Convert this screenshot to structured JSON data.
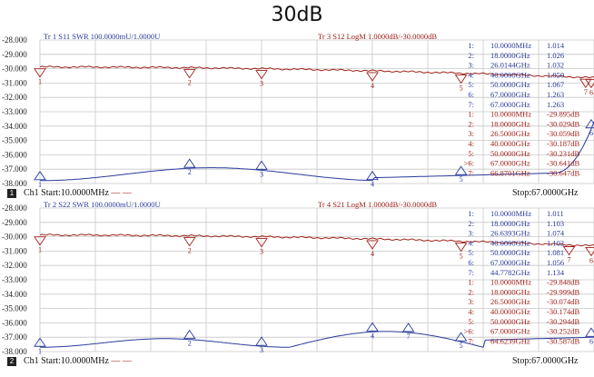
{
  "title": "30dB",
  "channels": [
    {
      "box": "1",
      "channel_label": "Ch1",
      "start": "Start:10.0000MHz",
      "stop": "Stop:67.0000GHz",
      "dash": "— —",
      "header_left": "Tr 1  S11 SWR 100.0000mU/1.0000U",
      "header_right": "Tr 3  S12 LogM 1.0000dB/-30.0000dB",
      "y_ticks": [
        "-28.000",
        "-29.000",
        "-30.000",
        "-31.000",
        "-32.000",
        "-33.000",
        "-34.000",
        "-35.000",
        "-36.000",
        "-37.000",
        "-38.000"
      ],
      "marker_list_blue": [
        {
          "id": "1:",
          "freq": "10.0000MHz",
          "val": "1.014"
        },
        {
          "id": "2:",
          "freq": "18.0000GHz",
          "val": "1.026"
        },
        {
          "id": "3:",
          "freq": "26.0144GHz",
          "val": "1.032"
        },
        {
          "id": "4:",
          "freq": "40.0000GHz",
          "val": "1.050"
        },
        {
          "id": "5:",
          "freq": "50.0000GHz",
          "val": "1.067"
        },
        {
          "id": "6:",
          "freq": "67.0000GHz",
          "val": "1.263"
        },
        {
          "id": "7:",
          "freq": "67.0000GHz",
          "val": "1.263"
        }
      ],
      "marker_list_red": [
        {
          "id": "1:",
          "freq": "10.0000MHz",
          "val": "-29.895dB"
        },
        {
          "id": "2:",
          "freq": "18.0000GHz",
          "val": "-30.029dB"
        },
        {
          "id": "3:",
          "freq": "26.5000GHz",
          "val": "-30.059dB"
        },
        {
          "id": "4:",
          "freq": "40.0000GHz",
          "val": "-30.187dB"
        },
        {
          "id": "5:",
          "freq": "50.0000GHz",
          "val": "-30.231dB"
        },
        {
          "id": ">6:",
          "freq": "67.0000GHz",
          "val": "-30.641dB"
        },
        {
          "id": "7:",
          "freq": "66.8701GHz",
          "val": "-30.647dB"
        }
      ],
      "red_markers_top": [
        "1",
        "2",
        "3",
        "4",
        "5",
        "6",
        "7"
      ],
      "blue_markers_bottom": [
        "1",
        "2",
        "3",
        "4",
        "5",
        "6"
      ]
    },
    {
      "box": "2",
      "channel_label": "Ch1",
      "start": "Start:10.0000MHz",
      "stop": "Stop:67.0000GHz",
      "dash": "— —",
      "header_left": "Tr 2  S22 SWR 100.0000mU/1.0000U",
      "header_right": "Tr 4  S21 LogM 1.0000dB/-30.0000dB",
      "y_ticks": [
        "-28.000",
        "-29.000",
        "-30.000",
        "-31.000",
        "-32.000",
        "-33.000",
        "-34.000",
        "-35.000",
        "-36.000",
        "-37.000",
        "-38.000"
      ],
      "marker_list_blue": [
        {
          "id": "1:",
          "freq": "10.0000MHz",
          "val": "1.011"
        },
        {
          "id": "2:",
          "freq": "18.0000GHz",
          "val": "1.103"
        },
        {
          "id": "3:",
          "freq": "26.6393GHz",
          "val": "1.074"
        },
        {
          "id": "4:",
          "freq": "40.0000GHz",
          "val": "1.102"
        },
        {
          "id": "5:",
          "freq": "50.0000GHz",
          "val": "1.081"
        },
        {
          "id": "6:",
          "freq": "67.0000GHz",
          "val": "1.056"
        },
        {
          "id": "7:",
          "freq": "44.7782GHz",
          "val": "1.134"
        }
      ],
      "marker_list_red": [
        {
          "id": "1:",
          "freq": "10.0000MHz",
          "val": "-29.848dB"
        },
        {
          "id": "2:",
          "freq": "18.0000GHz",
          "val": "-29.999dB"
        },
        {
          "id": "3:",
          "freq": "26.5000GHz",
          "val": "-30.074dB"
        },
        {
          "id": "4:",
          "freq": "40.0000GHz",
          "val": "-30.174dB"
        },
        {
          "id": "5:",
          "freq": "50.0000GHz",
          "val": "-30.294dB"
        },
        {
          "id": ">6:",
          "freq": "67.0000GHz",
          "val": "-30.252dB"
        },
        {
          "id": "7:",
          "freq": "64.6239GHz",
          "val": "-30.587dB"
        }
      ],
      "red_markers_top": [
        "1",
        "2",
        "3",
        "4",
        "5",
        "6",
        "7"
      ],
      "blue_markers_bottom": [
        "1",
        "2",
        "3",
        "4",
        "7",
        "5",
        "6"
      ]
    }
  ],
  "colors": {
    "trace_red": "#a0201a",
    "trace_blue": "#2a3a9a",
    "grid": "#c8c8c8",
    "text": "#222222"
  }
}
